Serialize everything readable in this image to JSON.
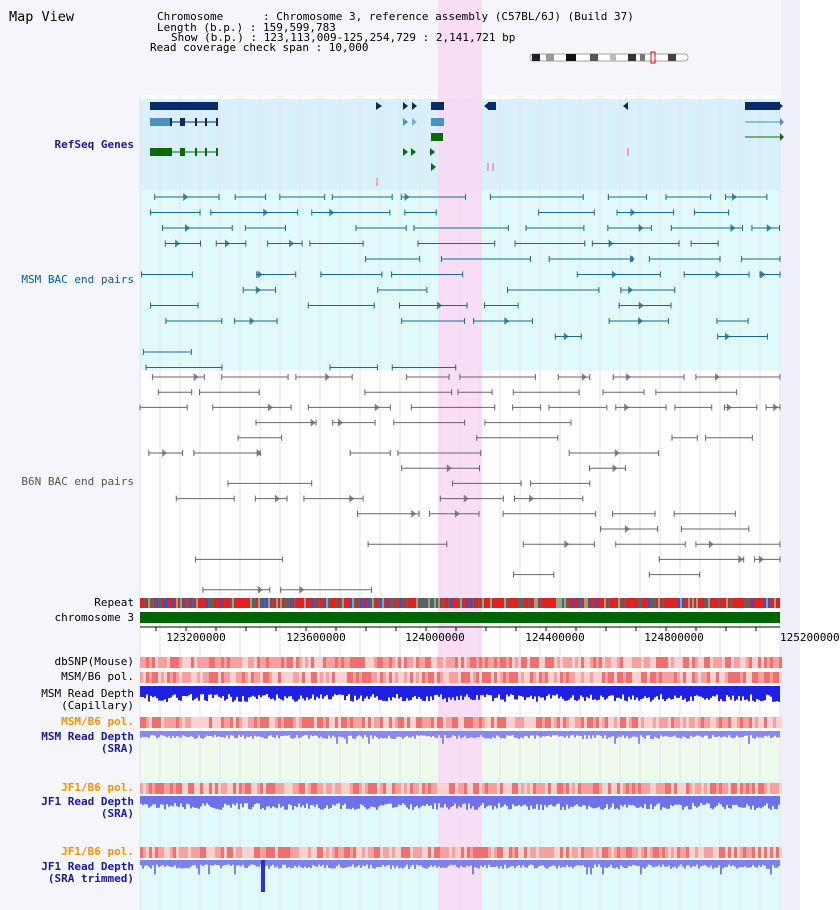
{
  "page": {
    "title": "Map View"
  },
  "info": {
    "chromosome": "Chromosome      : Chromosome 3, reference assembly (C57BL/6J) (Build 37)",
    "length": "Length (b.p.) : 159,599,783",
    "show": "Show (b.p.) : 123,113,009-125,254,729 : 2,141,721 bp",
    "coverage": "Read coverage check span : 10,000"
  },
  "tracks": {
    "refseq": "RefSeq Genes",
    "msm_bac": "MSM BAC end pairs",
    "b6n_bac": "B6N BAC end pairs",
    "repeat": "Repeat",
    "chromosome": "chromosome 3",
    "dbsnp": "dbSNP(Mouse)",
    "msm_b6_pol_1": "MSM/B6 pol.",
    "msm_read_depth_cap_1": "MSM Read Depth",
    "msm_read_depth_cap_2": "(Capillary)",
    "msm_b6_pol_2": "MSM/B6 pol.",
    "msm_read_depth_sra_1": "MSM Read Depth",
    "msm_read_depth_sra_2": "(SRA)",
    "jf1_b6_pol_1": "JF1/B6 pol.",
    "jf1_read_depth_sra_1": "JF1 Read Depth",
    "jf1_read_depth_sra_2": "(SRA)",
    "jf1_b6_pol_2": "JF1/B6 pol.",
    "jf1_read_depth_trim_1": "JF1 Read Depth",
    "jf1_read_depth_trim_2": "(SRA trimmed)"
  },
  "axis": {
    "ticks": [
      "123200000",
      "123600000",
      "124000000",
      "124400000",
      "124800000",
      "125200000"
    ]
  },
  "colors": {
    "highlight": "#f9d8f3",
    "refseq_bg": "#d8f0fa",
    "track_bg": "#e0fafa",
    "navy_gene": "#0a2a66",
    "light_gene": "#4a90c0",
    "green_gene": "#0a6a0a",
    "msm_bac": "#1a6a8a",
    "b6n_bac": "#666666",
    "repeat_red": "#dd2222",
    "chromosome_green": "#006400"
  }
}
